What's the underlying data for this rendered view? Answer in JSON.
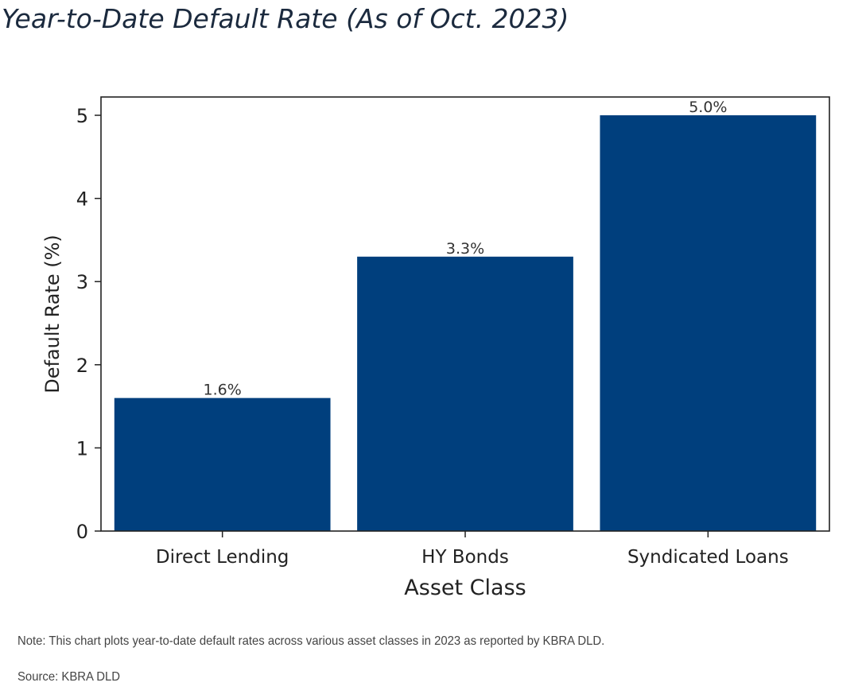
{
  "title": "Year-to-Date Default Rate (As of Oct. 2023)",
  "note": "Note: This chart plots year-to-date default rates across various asset classes in 2023 as reported by KBRA DLD.",
  "source": "Source: KBRA DLD",
  "colors": {
    "bar": "#003f7d",
    "axis": "#222222",
    "text": "#222222"
  },
  "chart_data": {
    "type": "bar",
    "categories": [
      "Direct Lending",
      "HY Bonds",
      "Syndicated Loans"
    ],
    "values": [
      1.6,
      3.3,
      5.0
    ],
    "data_labels": [
      "1.6%",
      "3.3%",
      "5.0%"
    ],
    "xlabel": "Asset Class",
    "ylabel": "Default Rate (%)",
    "ylim": [
      0,
      5.22
    ],
    "yticks": [
      0,
      1,
      2,
      3,
      4,
      5
    ],
    "grid": false,
    "legend": "none"
  }
}
